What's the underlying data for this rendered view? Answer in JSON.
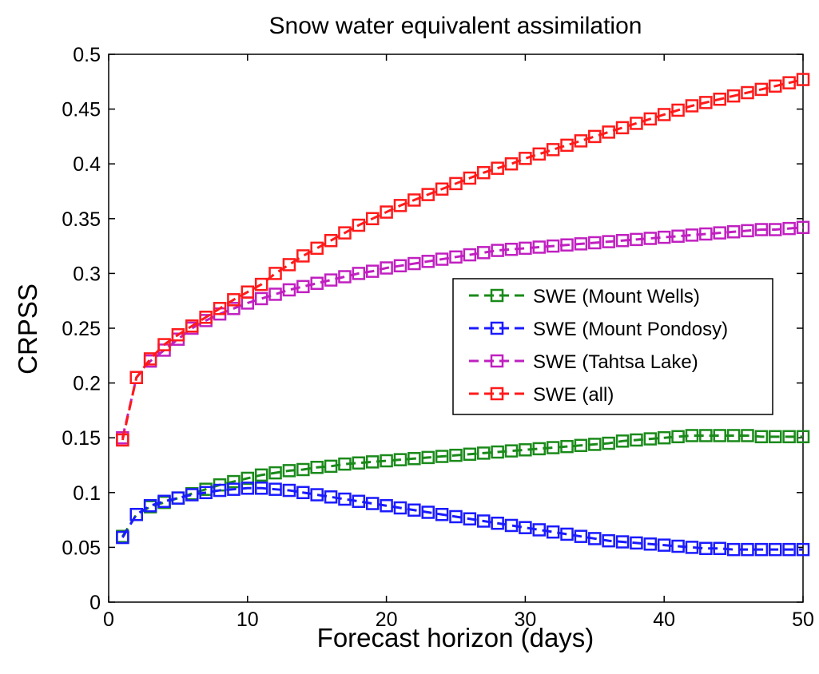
{
  "chart_data": {
    "type": "line",
    "title": "Snow water equivalent assimilation",
    "xlabel": "Forecast horizon (days)",
    "ylabel": "CRPSS",
    "xlim": [
      0,
      50
    ],
    "ylim": [
      0,
      0.5
    ],
    "xticks": [
      0,
      10,
      20,
      30,
      40,
      50
    ],
    "yticks": [
      0,
      0.05,
      0.1,
      0.15,
      0.2,
      0.25,
      0.3,
      0.35,
      0.4,
      0.45,
      0.5
    ],
    "grid": false,
    "legend_position": "right-middle",
    "x": [
      1,
      2,
      3,
      4,
      5,
      6,
      7,
      8,
      9,
      10,
      11,
      12,
      13,
      14,
      15,
      16,
      17,
      18,
      19,
      20,
      21,
      22,
      23,
      24,
      25,
      26,
      27,
      28,
      29,
      30,
      31,
      32,
      33,
      34,
      35,
      36,
      37,
      38,
      39,
      40,
      41,
      42,
      43,
      44,
      45,
      46,
      47,
      48,
      49,
      50
    ],
    "series": [
      {
        "name": "SWE (Mount Wells)",
        "color": "#1a8a1a",
        "values": [
          0.06,
          0.08,
          0.087,
          0.091,
          0.095,
          0.099,
          0.103,
          0.107,
          0.11,
          0.113,
          0.116,
          0.118,
          0.12,
          0.121,
          0.123,
          0.124,
          0.126,
          0.127,
          0.128,
          0.129,
          0.13,
          0.131,
          0.132,
          0.133,
          0.134,
          0.135,
          0.136,
          0.137,
          0.138,
          0.139,
          0.14,
          0.141,
          0.142,
          0.143,
          0.144,
          0.145,
          0.147,
          0.148,
          0.149,
          0.15,
          0.151,
          0.152,
          0.152,
          0.152,
          0.152,
          0.152,
          0.151,
          0.151,
          0.151,
          0.151
        ]
      },
      {
        "name": "SWE (Mount Pondosy)",
        "color": "#1a1aff",
        "values": [
          0.059,
          0.08,
          0.088,
          0.092,
          0.095,
          0.098,
          0.1,
          0.102,
          0.103,
          0.104,
          0.104,
          0.103,
          0.102,
          0.1,
          0.098,
          0.096,
          0.094,
          0.092,
          0.09,
          0.088,
          0.086,
          0.084,
          0.082,
          0.08,
          0.078,
          0.076,
          0.074,
          0.072,
          0.07,
          0.068,
          0.066,
          0.064,
          0.062,
          0.06,
          0.058,
          0.056,
          0.055,
          0.054,
          0.053,
          0.052,
          0.051,
          0.05,
          0.049,
          0.049,
          0.048,
          0.048,
          0.048,
          0.048,
          0.048,
          0.048
        ]
      },
      {
        "name": "SWE (Tahtsa Lake)",
        "color": "#c020c0",
        "values": [
          0.15,
          0.205,
          0.22,
          0.23,
          0.24,
          0.25,
          0.257,
          0.263,
          0.268,
          0.273,
          0.277,
          0.281,
          0.285,
          0.288,
          0.291,
          0.294,
          0.297,
          0.3,
          0.302,
          0.305,
          0.307,
          0.309,
          0.311,
          0.313,
          0.315,
          0.317,
          0.319,
          0.321,
          0.322,
          0.323,
          0.324,
          0.325,
          0.326,
          0.327,
          0.328,
          0.329,
          0.33,
          0.331,
          0.332,
          0.333,
          0.334,
          0.335,
          0.336,
          0.337,
          0.338,
          0.339,
          0.34,
          0.34,
          0.341,
          0.342
        ]
      },
      {
        "name": "SWE (all)",
        "color": "#ff1a1a",
        "values": [
          0.148,
          0.205,
          0.222,
          0.235,
          0.244,
          0.252,
          0.26,
          0.268,
          0.276,
          0.283,
          0.29,
          0.3,
          0.308,
          0.316,
          0.323,
          0.33,
          0.337,
          0.344,
          0.35,
          0.356,
          0.362,
          0.367,
          0.372,
          0.377,
          0.382,
          0.387,
          0.392,
          0.396,
          0.4,
          0.405,
          0.409,
          0.413,
          0.417,
          0.421,
          0.425,
          0.429,
          0.433,
          0.437,
          0.441,
          0.445,
          0.449,
          0.453,
          0.456,
          0.459,
          0.462,
          0.465,
          0.468,
          0.471,
          0.474,
          0.477
        ]
      }
    ]
  }
}
